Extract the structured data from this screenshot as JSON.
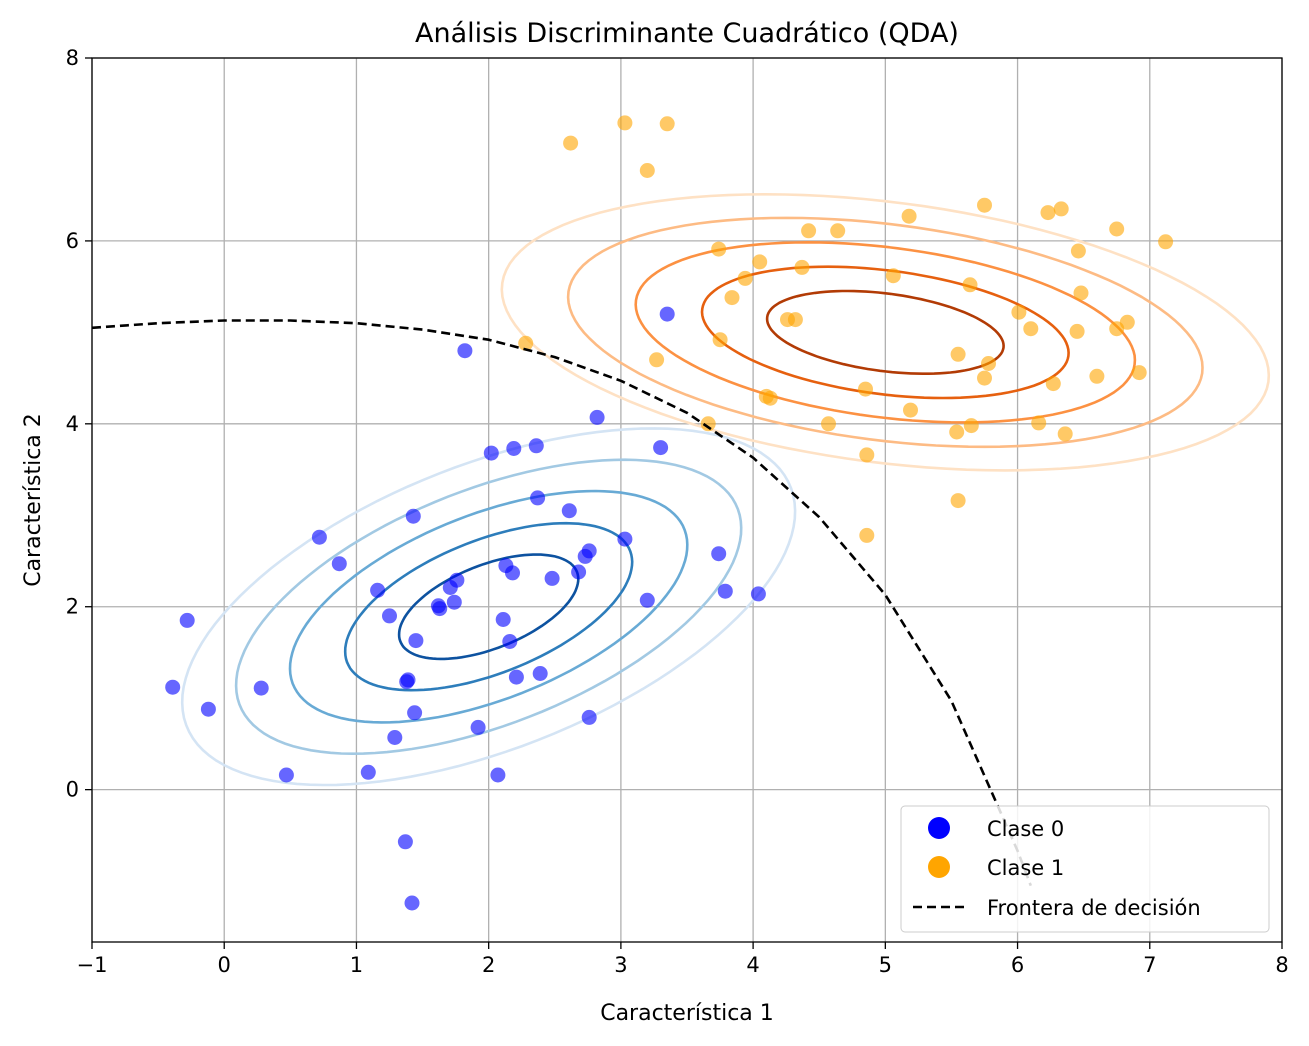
{
  "chart_data": {
    "type": "scatter",
    "title": "Análisis Discriminante Cuadrático (QDA)",
    "xlabel": "Característica 1",
    "ylabel": "Característica 2",
    "xlim": [
      -1,
      8
    ],
    "ylim": [
      -1.666,
      8
    ],
    "xticks": [
      -1,
      0,
      1,
      2,
      3,
      4,
      5,
      6,
      7,
      8
    ],
    "yticks": [
      0,
      2,
      4,
      6,
      8
    ],
    "grid": true,
    "legend_position": "lower-right",
    "legend": [
      {
        "label": "Clase 0",
        "marker": "circle",
        "color": "#0000ff"
      },
      {
        "label": "Clase 1",
        "marker": "circle",
        "color": "#ffa500"
      },
      {
        "label": "Frontera de decisión",
        "marker": "dashed-line",
        "color": "#000000"
      }
    ],
    "series": [
      {
        "name": "Clase 0",
        "color": "#0000ff",
        "points": [
          [
            3.35,
            5.2
          ],
          [
            1.82,
            4.8
          ],
          [
            2.82,
            4.07
          ],
          [
            2.02,
            3.68
          ],
          [
            2.19,
            3.73
          ],
          [
            2.36,
            3.76
          ],
          [
            3.3,
            3.74
          ],
          [
            2.37,
            3.19
          ],
          [
            2.61,
            3.05
          ],
          [
            1.43,
            2.99
          ],
          [
            3.03,
            2.74
          ],
          [
            0.72,
            2.76
          ],
          [
            0.87,
            2.47
          ],
          [
            2.13,
            2.45
          ],
          [
            2.18,
            2.37
          ],
          [
            2.76,
            2.61
          ],
          [
            2.73,
            2.55
          ],
          [
            2.68,
            2.38
          ],
          [
            2.48,
            2.31
          ],
          [
            3.74,
            2.58
          ],
          [
            3.79,
            2.17
          ],
          [
            4.04,
            2.14
          ],
          [
            3.2,
            2.07
          ],
          [
            1.76,
            2.29
          ],
          [
            1.71,
            2.21
          ],
          [
            1.16,
            2.18
          ],
          [
            1.62,
            2.01
          ],
          [
            1.63,
            1.98
          ],
          [
            1.74,
            2.05
          ],
          [
            1.25,
            1.9
          ],
          [
            2.11,
            1.86
          ],
          [
            -0.28,
            1.85
          ],
          [
            1.45,
            1.63
          ],
          [
            2.16,
            1.62
          ],
          [
            -0.39,
            1.12
          ],
          [
            0.28,
            1.11
          ],
          [
            -0.12,
            0.88
          ],
          [
            1.38,
            1.18
          ],
          [
            1.39,
            1.2
          ],
          [
            2.21,
            1.23
          ],
          [
            2.39,
            1.27
          ],
          [
            1.44,
            0.84
          ],
          [
            1.92,
            0.68
          ],
          [
            1.29,
            0.57
          ],
          [
            2.76,
            0.79
          ],
          [
            0.47,
            0.16
          ],
          [
            1.09,
            0.19
          ],
          [
            2.07,
            0.16
          ],
          [
            1.37,
            -0.57
          ],
          [
            1.42,
            -1.24
          ]
        ]
      },
      {
        "name": "Clase 1",
        "color": "#ffa500",
        "points": [
          [
            3.03,
            7.29
          ],
          [
            3.35,
            7.28
          ],
          [
            2.62,
            7.07
          ],
          [
            3.2,
            6.77
          ],
          [
            5.75,
            6.39
          ],
          [
            6.33,
            6.35
          ],
          [
            6.23,
            6.31
          ],
          [
            5.18,
            6.27
          ],
          [
            6.75,
            6.13
          ],
          [
            7.12,
            5.99
          ],
          [
            4.42,
            6.11
          ],
          [
            4.64,
            6.11
          ],
          [
            3.74,
            5.91
          ],
          [
            6.46,
            5.89
          ],
          [
            4.05,
            5.77
          ],
          [
            4.37,
            5.71
          ],
          [
            3.94,
            5.59
          ],
          [
            5.06,
            5.62
          ],
          [
            5.64,
            5.52
          ],
          [
            6.48,
            5.43
          ],
          [
            3.84,
            5.38
          ],
          [
            6.01,
            5.22
          ],
          [
            6.83,
            5.11
          ],
          [
            4.26,
            5.14
          ],
          [
            4.32,
            5.14
          ],
          [
            6.1,
            5.04
          ],
          [
            6.45,
            5.01
          ],
          [
            6.75,
            5.04
          ],
          [
            2.28,
            4.88
          ],
          [
            3.75,
            4.92
          ],
          [
            5.55,
            4.76
          ],
          [
            3.27,
            4.7
          ],
          [
            5.78,
            4.66
          ],
          [
            6.6,
            4.52
          ],
          [
            5.75,
            4.5
          ],
          [
            6.92,
            4.56
          ],
          [
            6.27,
            4.44
          ],
          [
            4.85,
            4.38
          ],
          [
            4.1,
            4.3
          ],
          [
            4.13,
            4.28
          ],
          [
            5.19,
            4.15
          ],
          [
            3.66,
            4.0
          ],
          [
            4.57,
            4.0
          ],
          [
            6.16,
            4.01
          ],
          [
            5.65,
            3.98
          ],
          [
            5.54,
            3.91
          ],
          [
            6.36,
            3.89
          ],
          [
            4.86,
            3.66
          ],
          [
            5.55,
            3.16
          ],
          [
            4.86,
            2.78
          ]
        ]
      }
    ],
    "contours": [
      {
        "class": "Clase 0",
        "center": [
          2.0,
          2.0
        ],
        "colors": [
          "#d4e4f4",
          "#a2c9e3",
          "#68aad5",
          "#2d7dbb",
          "#0d52a0"
        ],
        "ellipses": [
          {
            "a": 2.67,
            "b": 1.43,
            "angle_deg": 36
          },
          {
            "a": 2.2,
            "b": 1.18,
            "angle_deg": 36
          },
          {
            "a": 1.73,
            "b": 0.93,
            "angle_deg": 36
          },
          {
            "a": 1.25,
            "b": 0.67,
            "angle_deg": 36
          },
          {
            "a": 0.78,
            "b": 0.42,
            "angle_deg": 36
          }
        ]
      },
      {
        "class": "Clase 1",
        "center": [
          5.0,
          5.0
        ],
        "colors": [
          "#fee1c4",
          "#fdbb84",
          "#fc9142",
          "#e6600f",
          "#b23b05"
        ],
        "ellipses": [
          {
            "a": 2.95,
            "b": 1.41,
            "angle_deg": -12
          },
          {
            "a": 2.44,
            "b": 1.17,
            "angle_deg": -12
          },
          {
            "a": 1.92,
            "b": 0.92,
            "angle_deg": -12
          },
          {
            "a": 1.41,
            "b": 0.67,
            "angle_deg": -12
          },
          {
            "a": 0.91,
            "b": 0.42,
            "angle_deg": -12
          }
        ]
      }
    ],
    "decision_boundary": {
      "style": "dashed",
      "color": "#000000",
      "points": [
        [
          -1.0,
          5.05
        ],
        [
          -0.5,
          5.1
        ],
        [
          0.0,
          5.13
        ],
        [
          0.5,
          5.13
        ],
        [
          1.0,
          5.1
        ],
        [
          1.5,
          5.03
        ],
        [
          2.0,
          4.92
        ],
        [
          2.5,
          4.73
        ],
        [
          3.0,
          4.47
        ],
        [
          3.5,
          4.12
        ],
        [
          4.0,
          3.63
        ],
        [
          4.5,
          2.98
        ],
        [
          5.0,
          2.13
        ],
        [
          5.5,
          0.97
        ],
        [
          6.0,
          -0.67
        ],
        [
          6.1,
          -1.05
        ]
      ]
    }
  }
}
